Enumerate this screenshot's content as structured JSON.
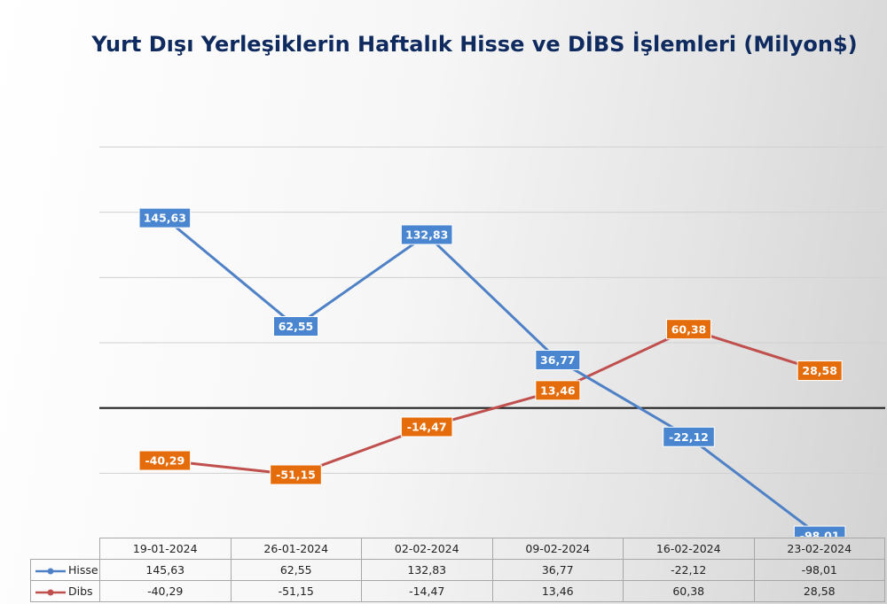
{
  "chart_data": {
    "type": "line",
    "title": "Yurt Dışı Yerleşiklerin Haftalık Hisse ve DİBS İşlemleri (Milyon$)",
    "categories": [
      "19-01-2024",
      "26-01-2024",
      "02-02-2024",
      "09-02-2024",
      "16-02-2024",
      "23-02-2024"
    ],
    "series": [
      {
        "name": "Hisse",
        "values": [
          145.63,
          62.55,
          132.83,
          36.77,
          -22.12,
          -98.01
        ],
        "labels": [
          "145,63",
          "62,55",
          "132,83",
          "36,77",
          "-22,12",
          "-98,01"
        ],
        "line_color": "#4f81c7",
        "label_fill": "#4a86d0"
      },
      {
        "name": "Dibs",
        "values": [
          -40.29,
          -51.15,
          -14.47,
          13.46,
          60.38,
          28.58
        ],
        "labels": [
          "-40,29",
          "-51,15",
          "-14,47",
          "13,46",
          "60,38",
          "28,58"
        ],
        "line_color": "#c0504d",
        "label_fill": "#e46c0a"
      }
    ],
    "ylim": [
      -100,
      200
    ],
    "grid": true,
    "legend": "data table below chart",
    "zero_line_color": "#222222"
  }
}
